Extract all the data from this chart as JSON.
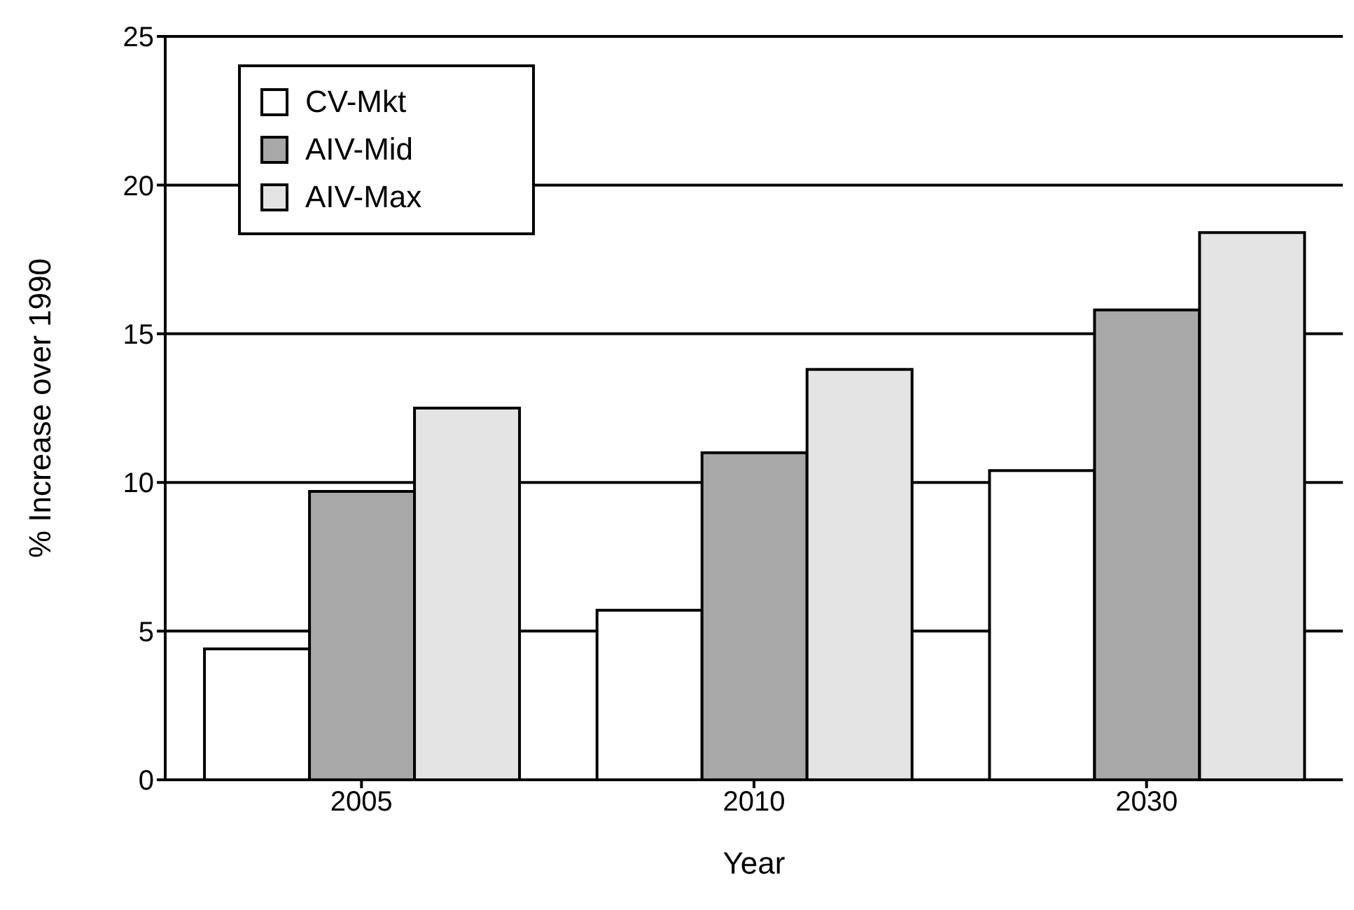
{
  "chart_data": {
    "type": "bar",
    "xlabel": "Year",
    "ylabel": "% Increase over 1990",
    "categories": [
      "2005",
      "2010",
      "2030"
    ],
    "series": [
      {
        "name": "CV-Mkt",
        "color": "#ffffff",
        "values": [
          4.4,
          5.7,
          10.4
        ]
      },
      {
        "name": "AIV-Mid",
        "color": "#a8a8a8",
        "values": [
          9.7,
          11.0,
          15.8
        ]
      },
      {
        "name": "AIV-Max",
        "color": "#e4e4e4",
        "values": [
          12.5,
          13.8,
          18.4
        ]
      }
    ],
    "ylim": [
      0,
      25
    ],
    "yticks": [
      0,
      5,
      10,
      15,
      20,
      25
    ],
    "grid": "y",
    "legend": "top left"
  }
}
